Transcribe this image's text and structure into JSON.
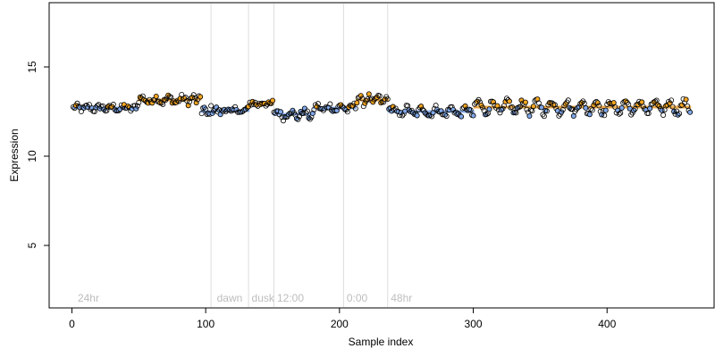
{
  "chart_data": {
    "type": "scatter",
    "title": "",
    "xlabel": "Sample index",
    "ylabel": "Expression",
    "xlim": [
      -17,
      480
    ],
    "ylim": [
      1.5,
      18.6
    ],
    "xticks": [
      0,
      100,
      200,
      300,
      400
    ],
    "yticks": [
      5,
      10,
      15
    ],
    "grid": false,
    "legend": "none",
    "colors": {
      "point_edge": "#000000",
      "above_fill": "#f5a623",
      "below_fill": "#7fa7e8",
      "baseline_above": "#e8a84a",
      "baseline_below": "#8fb3ee",
      "divider": "#dddddd",
      "annotation": "#bdbdbd",
      "axis": "#000000"
    },
    "baseline": 12.75,
    "dividers": [
      104,
      132,
      151,
      203,
      236
    ],
    "annotations": [
      {
        "x": 3,
        "text": "24hr"
      },
      {
        "x": 107,
        "text": "dawn"
      },
      {
        "x": 133,
        "text": "dusk"
      },
      {
        "x": 152,
        "text": "12:00"
      },
      {
        "x": 204,
        "text": "0:00"
      },
      {
        "x": 237,
        "text": "48hr"
      }
    ],
    "segments": [
      {
        "x_start": 1,
        "x_end": 49,
        "base": 12.7,
        "amp": 0.1,
        "period": 9
      },
      {
        "x_start": 50,
        "x_end": 88,
        "base": 13.15,
        "amp": 0.15,
        "period": 10
      },
      {
        "x_start": 89,
        "x_end": 96,
        "base": 13.2,
        "amp": 0.15,
        "period": 6
      },
      {
        "x_start": 97,
        "x_end": 104,
        "base": 12.5,
        "amp": 0.2,
        "period": 6
      },
      {
        "x_start": 105,
        "x_end": 132,
        "base": 12.55,
        "amp": 0.12,
        "period": 8
      },
      {
        "x_start": 133,
        "x_end": 150,
        "base": 12.95,
        "amp": 0.08,
        "period": 8
      },
      {
        "x_start": 151,
        "x_end": 180,
        "base": 12.35,
        "amp": 0.2,
        "period": 10
      },
      {
        "x_start": 181,
        "x_end": 212,
        "base": 12.7,
        "amp": 0.15,
        "period": 9
      },
      {
        "x_start": 213,
        "x_end": 236,
        "base": 13.15,
        "amp": 0.2,
        "period": 7
      },
      {
        "x_start": 237,
        "x_end": 300,
        "base": 12.5,
        "amp": 0.22,
        "period": 11
      },
      {
        "x_start": 301,
        "x_end": 462,
        "base": 12.75,
        "amp": 0.35,
        "period": 11
      }
    ]
  }
}
